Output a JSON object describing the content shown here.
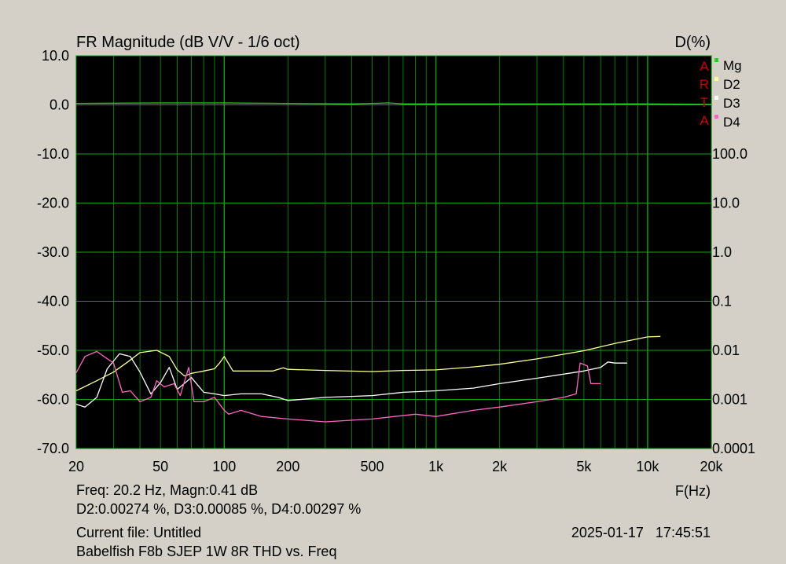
{
  "chart_data": {
    "type": "line",
    "title": "FR Magnitude (dB V/V - 1/6 oct)",
    "right_axis_title": "D(%)",
    "xlabel": "F(Hz)",
    "x_scale": "log",
    "xlim": [
      20,
      20000
    ],
    "x_ticks": [
      20,
      50,
      100,
      200,
      500,
      1000,
      2000,
      5000,
      10000,
      20000
    ],
    "x_tick_labels": [
      "20",
      "50",
      "100",
      "200",
      "500",
      "1k",
      "2k",
      "5k",
      "10k",
      "20k"
    ],
    "ylim": [
      -70,
      10
    ],
    "y_ticks": [
      10,
      0,
      -10,
      -20,
      -30,
      -40,
      -50,
      -60,
      -70
    ],
    "y_tick_labels": [
      "10.0",
      "0.0",
      "-10.0",
      "-20.0",
      "-30.0",
      "-40.0",
      "-50.0",
      "-60.0",
      "-70.0"
    ],
    "y2_scale": "log",
    "y2lim": [
      0.0001,
      100
    ],
    "y2_ticks": [
      100,
      10,
      1,
      0.1,
      0.01,
      0.001,
      0.0001
    ],
    "y2_tick_labels": [
      "100.0",
      "10.0",
      "1.0",
      "0.1",
      "0.01",
      "0.001",
      "0.0001"
    ],
    "grid": true,
    "legend_position": "top-right",
    "brand_letters": [
      "A",
      "R",
      "T",
      "A"
    ],
    "series": [
      {
        "name": "Mg",
        "axis": "left",
        "color": "#22d322",
        "points": [
          [
            20,
            0.3
          ],
          [
            50,
            0.4
          ],
          [
            100,
            0.4
          ],
          [
            200,
            0.3
          ],
          [
            400,
            0.2
          ],
          [
            500,
            0.3
          ],
          [
            600,
            0.4
          ],
          [
            700,
            0.2
          ],
          [
            1000,
            0.2
          ],
          [
            2000,
            0.2
          ],
          [
            5000,
            0.2
          ],
          [
            10000,
            0.2
          ],
          [
            20000,
            0.1
          ]
        ]
      },
      {
        "name": "D2",
        "axis": "right",
        "color": "#ffff99",
        "points": [
          [
            20,
            0.0015
          ],
          [
            25,
            0.0024
          ],
          [
            30,
            0.0036
          ],
          [
            35,
            0.0058
          ],
          [
            40,
            0.009
          ],
          [
            48,
            0.01
          ],
          [
            55,
            0.0075
          ],
          [
            60,
            0.004
          ],
          [
            65,
            0.003
          ],
          [
            70,
            0.0034
          ],
          [
            80,
            0.0038
          ],
          [
            90,
            0.0042
          ],
          [
            95,
            0.0055
          ],
          [
            100,
            0.0075
          ],
          [
            110,
            0.0038
          ],
          [
            150,
            0.0038
          ],
          [
            170,
            0.0038
          ],
          [
            190,
            0.0044
          ],
          [
            200,
            0.0041
          ],
          [
            300,
            0.0039
          ],
          [
            500,
            0.0037
          ],
          [
            700,
            0.0039
          ],
          [
            1000,
            0.004
          ],
          [
            1500,
            0.0046
          ],
          [
            2000,
            0.0052
          ],
          [
            3000,
            0.0067
          ],
          [
            5000,
            0.0098
          ],
          [
            7000,
            0.0138
          ],
          [
            10000,
            0.0188
          ],
          [
            11500,
            0.0192
          ]
        ]
      },
      {
        "name": "D3",
        "axis": "right",
        "color": "#ffffff",
        "points": [
          [
            20,
            0.0008
          ],
          [
            22,
            0.0007
          ],
          [
            25,
            0.0011
          ],
          [
            28,
            0.0042
          ],
          [
            32,
            0.0085
          ],
          [
            36,
            0.0075
          ],
          [
            40,
            0.0036
          ],
          [
            45,
            0.0013
          ],
          [
            50,
            0.0022
          ],
          [
            55,
            0.0045
          ],
          [
            60,
            0.0016
          ],
          [
            70,
            0.0028
          ],
          [
            80,
            0.0014
          ],
          [
            90,
            0.0013
          ],
          [
            100,
            0.0012
          ],
          [
            120,
            0.0013
          ],
          [
            150,
            0.0013
          ],
          [
            180,
            0.0011
          ],
          [
            200,
            0.00095
          ],
          [
            300,
            0.0011
          ],
          [
            500,
            0.0012
          ],
          [
            700,
            0.0014
          ],
          [
            1000,
            0.0015
          ],
          [
            1500,
            0.0017
          ],
          [
            2000,
            0.0021
          ],
          [
            3000,
            0.0027
          ],
          [
            5000,
            0.0038
          ],
          [
            6000,
            0.0045
          ],
          [
            6500,
            0.0058
          ],
          [
            7000,
            0.0055
          ],
          [
            8000,
            0.0055
          ]
        ]
      },
      {
        "name": "D4",
        "axis": "right",
        "color": "#ff66c4",
        "points": [
          [
            20,
            0.0035
          ],
          [
            22,
            0.0075
          ],
          [
            25,
            0.0095
          ],
          [
            30,
            0.0055
          ],
          [
            33,
            0.0014
          ],
          [
            36,
            0.0015
          ],
          [
            40,
            0.0009
          ],
          [
            45,
            0.0011
          ],
          [
            48,
            0.0024
          ],
          [
            52,
            0.0018
          ],
          [
            58,
            0.0021
          ],
          [
            62,
            0.0012
          ],
          [
            68,
            0.0045
          ],
          [
            72,
            0.0009
          ],
          [
            80,
            0.0009
          ],
          [
            90,
            0.0011
          ],
          [
            100,
            0.0006
          ],
          [
            105,
            0.0005
          ],
          [
            120,
            0.0006
          ],
          [
            150,
            0.00045
          ],
          [
            200,
            0.0004
          ],
          [
            300,
            0.00035
          ],
          [
            500,
            0.0004
          ],
          [
            800,
            0.0005
          ],
          [
            1000,
            0.00045
          ],
          [
            1500,
            0.0006
          ],
          [
            2000,
            0.0007
          ],
          [
            3000,
            0.0009
          ],
          [
            4000,
            0.0011
          ],
          [
            4600,
            0.0013
          ],
          [
            4800,
            0.0055
          ],
          [
            5200,
            0.0048
          ],
          [
            5400,
            0.0021
          ],
          [
            6000,
            0.0021
          ]
        ]
      }
    ]
  },
  "readout": {
    "line1": "Freq: 20.2 Hz, Magn:0.41 dB",
    "line2": "D2:0.00274 %, D3:0.00085 %, D4:0.00297 %"
  },
  "footer": {
    "current_file": "Current file: Untitled",
    "description": "Babelfish F8b SJEP 1W 8R THD vs. Freq",
    "timestamp": "2025-01-17   17:45:51"
  }
}
